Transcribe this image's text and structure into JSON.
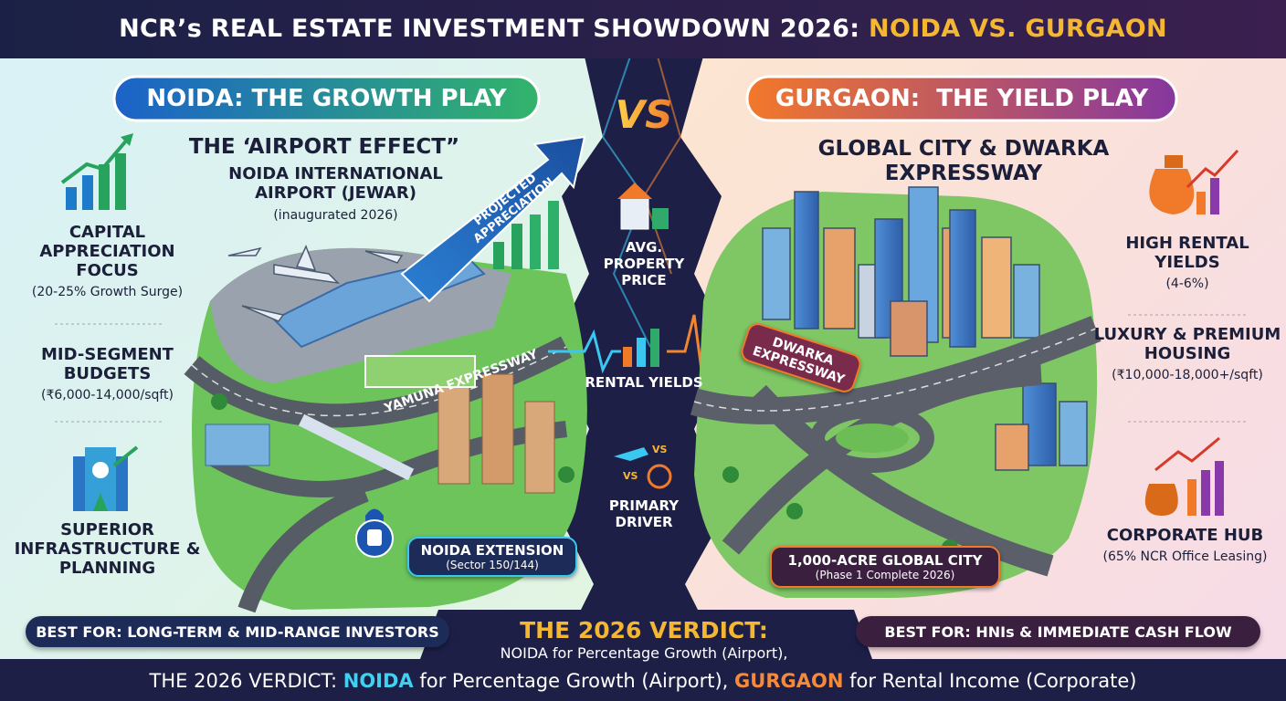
{
  "title": {
    "main": "NCR’s REAL ESTATE INVESTMENT SHOWDOWN 2026: ",
    "highlight": "NOIDA VS. GURGAON"
  },
  "noida": {
    "heading": "NOIDA: THE GROWTH PLAY",
    "features": [
      {
        "title": "CAPITAL APPRECIATION FOCUS",
        "detail": "(20-25% Growth Surge)"
      },
      {
        "title": "MID-SEGMENT BUDGETS",
        "detail": "(₹6,000-14,000/sqft)"
      },
      {
        "title": "SUPERIOR INFRASTRUCTURE & PLANNING"
      }
    ],
    "airport": {
      "title": "THE ‘AIRPORT EFFECT”",
      "subtitle": "NOIDA INTERNATIONAL AIRPORT (JEWAR)",
      "note": "(inaugurated 2026)"
    },
    "arrow_label": "PROJECTED APPRECIATION",
    "road_label": "YAMUNA EXPRESSWAY",
    "location": {
      "title": "NOIDA EXTENSION",
      "detail": "(Sector 150/144)"
    },
    "best_for": "BEST FOR: LONG-TERM & MID-RANGE INVESTORS"
  },
  "center": {
    "vs": "VS",
    "metrics": [
      "AVG. PROPERTY PRICE",
      "RENTAL YIELDS",
      "PRIMARY DRIVER"
    ],
    "icon_vs": [
      "VS",
      "VS"
    ]
  },
  "gurgaon": {
    "heading": "GURGAON:  THE YIELD PLAY",
    "feature_title": "GLOBAL CITY & DWARKA EXPRESSWAY",
    "road_label": "DWARKA EXPRESSWAY",
    "location": {
      "title": "1,000-ACRE GLOBAL CITY",
      "detail": "(Phase 1 Complete 2026)"
    },
    "features": [
      {
        "title": "HIGH RENTAL YIELDS",
        "detail": "(4-6%)"
      },
      {
        "title": "LUXURY & PREMIUM HOUSING",
        "detail": "(₹10,000-18,000+/sqft)"
      },
      {
        "title": "CORPORATE HUB",
        "detail": "(65% NCR Office Leasing)"
      }
    ],
    "best_for": "BEST FOR: HNIs & IMMEDIATE CASH FLOW"
  },
  "verdict": {
    "title": "THE 2026 VERDICT:",
    "line": "NOIDA for Percentage Growth (Airport),",
    "footer": [
      "THE 2026 VERDICT: ",
      "NOIDA",
      " for Percentage Growth (Airport), ",
      "GURGAON",
      " for Rental Income (Corporate)"
    ]
  }
}
